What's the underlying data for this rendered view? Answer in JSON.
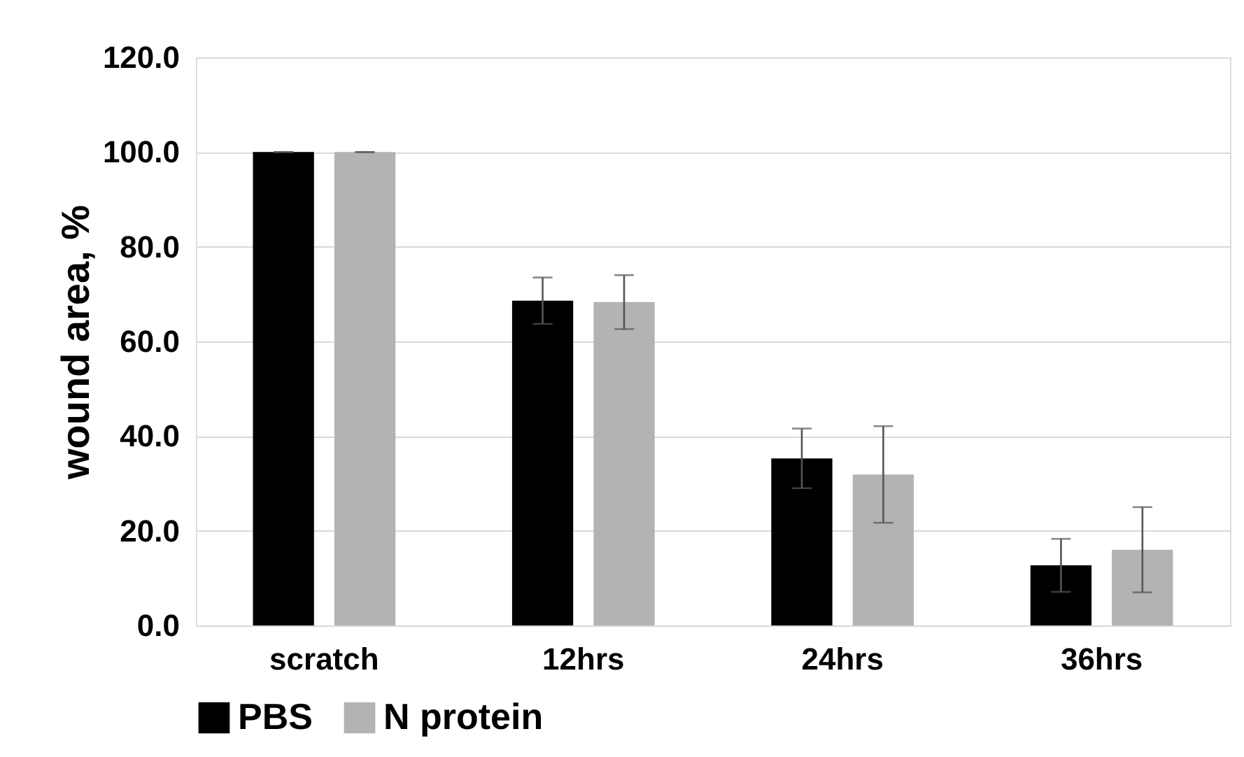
{
  "chart_data": {
    "type": "bar",
    "ylabel": "wound area, %",
    "categories": [
      "scratch",
      "12hrs",
      "24hrs",
      "36hrs"
    ],
    "series": [
      {
        "name": "PBS",
        "color": "#000000",
        "values": [
          100.0,
          68.6,
          35.3,
          12.7
        ],
        "errors": [
          0,
          4.9,
          6.3,
          5.6
        ]
      },
      {
        "name": "N protein",
        "color": "#b3b3b3",
        "values": [
          100.0,
          68.3,
          31.9,
          16.0
        ],
        "errors": [
          0,
          5.7,
          10.2,
          9.0
        ]
      }
    ],
    "ylim": [
      0,
      120
    ],
    "yticks": [
      {
        "value": 0,
        "label": "0.0"
      },
      {
        "value": 20,
        "label": "20.0"
      },
      {
        "value": 40,
        "label": "40.0"
      },
      {
        "value": 60,
        "label": "60.0"
      },
      {
        "value": 80,
        "label": "80.0"
      },
      {
        "value": 100,
        "label": "100.0"
      },
      {
        "value": 120,
        "label": "120.0"
      }
    ],
    "grid": "y",
    "legend": "bottom"
  }
}
